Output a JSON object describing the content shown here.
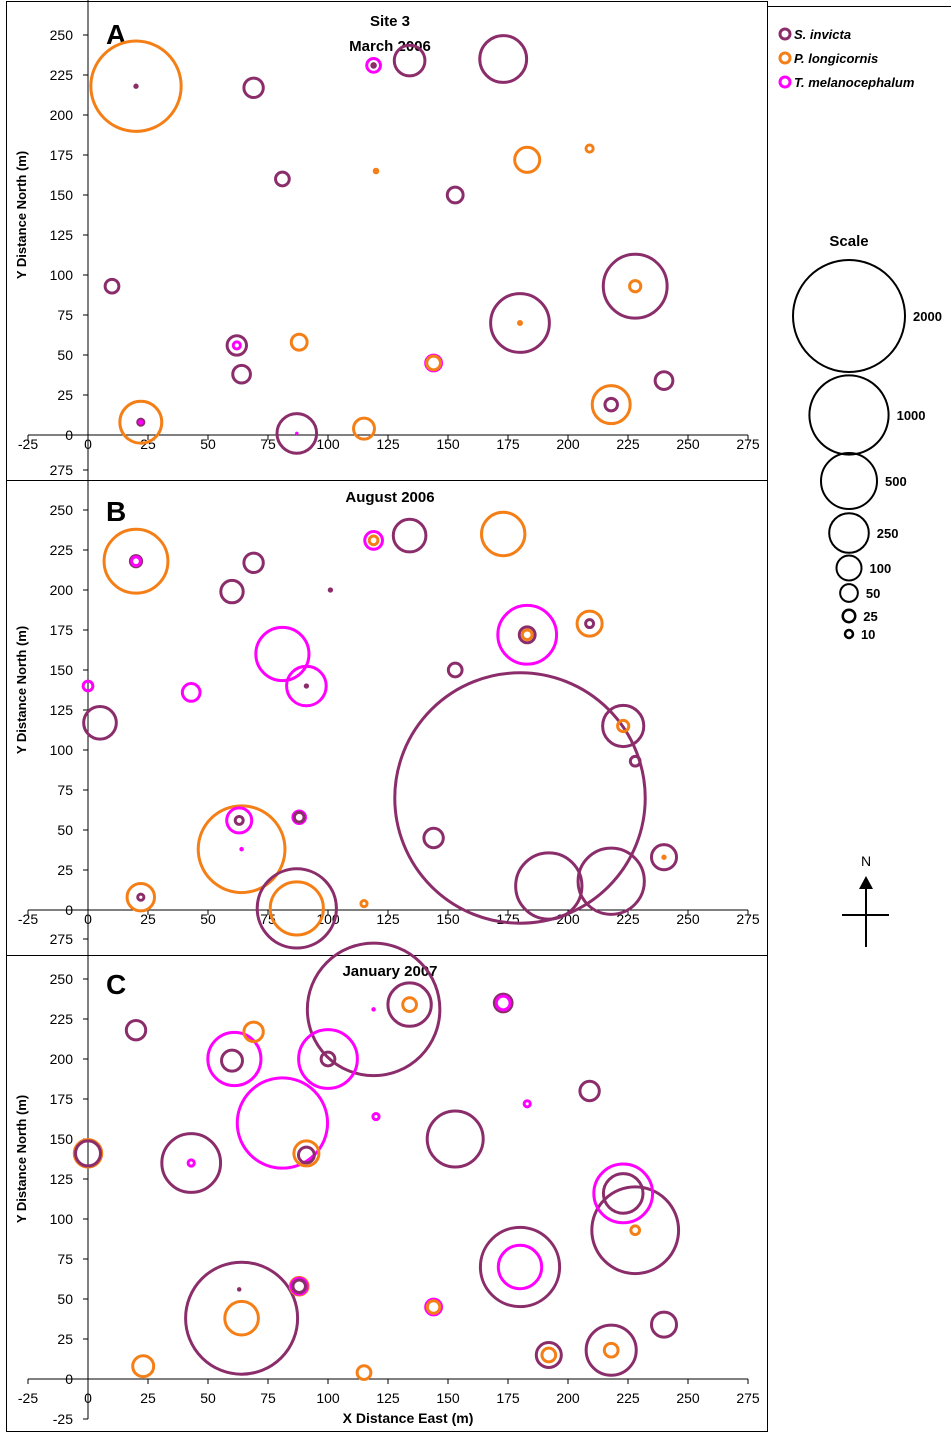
{
  "legend": {
    "items": [
      {
        "name": "S. invicta",
        "color": "#8B2D6B"
      },
      {
        "name": "P. longicornis",
        "color": "#F57F17"
      },
      {
        "name": "T. melanocephalum",
        "color": "#FF00FF"
      }
    ]
  },
  "scale_legend": {
    "title": "Scale",
    "items": [
      {
        "value": 2000,
        "label": "2000"
      },
      {
        "value": 1000,
        "label": "1000"
      },
      {
        "value": 500,
        "label": "500"
      },
      {
        "value": 250,
        "label": "250"
      },
      {
        "value": 100,
        "label": "100"
      },
      {
        "value": 50,
        "label": "50"
      },
      {
        "value": 25,
        "label": "25"
      },
      {
        "value": 10,
        "label": "10"
      }
    ]
  },
  "north_arrow": {
    "label": "N"
  },
  "chart_data": [
    {
      "type": "scatter",
      "panel_letter": "A",
      "title": "Site 3\nMarch 2006",
      "xlabel": "",
      "ylabel": "Y Distance North (m)",
      "xlim": [
        -25,
        275
      ],
      "ylim": [
        -25,
        275
      ],
      "xticks": [
        "-25",
        "0",
        "25",
        "50",
        "75",
        "100",
        "125",
        "150",
        "175",
        "200",
        "225",
        "250",
        "275"
      ],
      "yticks": [
        "275",
        "250",
        "225",
        "200",
        "175",
        "150",
        "125",
        "100",
        "75",
        "50",
        "25",
        "0"
      ],
      "series": [
        {
          "name": "S. invicta",
          "color": "#8B2D6B",
          "points": [
            {
              "x": 10,
              "y": 93,
              "value": 30
            },
            {
              "x": 20,
              "y": 218,
              "value": 3
            },
            {
              "x": 22,
              "y": 8,
              "value": 6
            },
            {
              "x": 62,
              "y": 56,
              "value": 60
            },
            {
              "x": 64,
              "y": 38,
              "value": 50
            },
            {
              "x": 69,
              "y": 217,
              "value": 60
            },
            {
              "x": 81,
              "y": 160,
              "value": 30
            },
            {
              "x": 87,
              "y": 1,
              "value": 250
            },
            {
              "x": 119,
              "y": 231,
              "value": 5
            },
            {
              "x": 134,
              "y": 234,
              "value": 150
            },
            {
              "x": 153,
              "y": 150,
              "value": 40
            },
            {
              "x": 173,
              "y": 235,
              "value": 350
            },
            {
              "x": 180,
              "y": 70,
              "value": 550
            },
            {
              "x": 218,
              "y": 19,
              "value": 25
            },
            {
              "x": 228,
              "y": 93,
              "value": 650
            },
            {
              "x": 240,
              "y": 34,
              "value": 50
            }
          ]
        },
        {
          "name": "P. longicornis",
          "color": "#F57F17",
          "points": [
            {
              "x": 20,
              "y": 218,
              "value": 1300
            },
            {
              "x": 22,
              "y": 8,
              "value": 280
            },
            {
              "x": 88,
              "y": 58,
              "value": 40
            },
            {
              "x": 115,
              "y": 4,
              "value": 70
            },
            {
              "x": 120,
              "y": 165,
              "value": 5
            },
            {
              "x": 144,
              "y": 45,
              "value": 30
            },
            {
              "x": 183,
              "y": 172,
              "value": 100
            },
            {
              "x": 209,
              "y": 179,
              "value": 8
            },
            {
              "x": 218,
              "y": 19,
              "value": 230
            },
            {
              "x": 228,
              "y": 93,
              "value": 20
            },
            {
              "x": 180,
              "y": 70,
              "value": 4
            }
          ]
        },
        {
          "name": "T. melanocephalum",
          "color": "#FF00FF",
          "points": [
            {
              "x": 22,
              "y": 8,
              "value": 3
            },
            {
              "x": 62,
              "y": 56,
              "value": 8
            },
            {
              "x": 87,
              "y": 1,
              "value": 1
            },
            {
              "x": 119,
              "y": 231,
              "value": 30
            },
            {
              "x": 144,
              "y": 45,
              "value": 40
            }
          ]
        }
      ]
    },
    {
      "type": "scatter",
      "panel_letter": "B",
      "title": "August 2006",
      "xlabel": "",
      "ylabel": "Y Distance North (m)",
      "xlim": [
        -25,
        275
      ],
      "ylim": [
        -25,
        275
      ],
      "xticks": [
        "-25",
        "0",
        "25",
        "50",
        "75",
        "100",
        "125",
        "150",
        "175",
        "200",
        "225",
        "250",
        "275"
      ],
      "yticks": [
        "275",
        "250",
        "225",
        "200",
        "175",
        "150",
        "125",
        "100",
        "75",
        "50",
        "25",
        "0"
      ],
      "series": [
        {
          "name": "S. invicta",
          "color": "#8B2D6B",
          "points": [
            {
              "x": 5,
              "y": 117,
              "value": 170
            },
            {
              "x": 20,
              "y": 218,
              "value": 20
            },
            {
              "x": 22,
              "y": 8,
              "value": 6
            },
            {
              "x": 60,
              "y": 199,
              "value": 80
            },
            {
              "x": 63,
              "y": 56,
              "value": 10
            },
            {
              "x": 69,
              "y": 217,
              "value": 60
            },
            {
              "x": 88,
              "y": 58,
              "value": 15
            },
            {
              "x": 87,
              "y": 1,
              "value": 1000
            },
            {
              "x": 91,
              "y": 140,
              "value": 3
            },
            {
              "x": 101,
              "y": 200,
              "value": 3
            },
            {
              "x": 134,
              "y": 234,
              "value": 170
            },
            {
              "x": 144,
              "y": 45,
              "value": 60
            },
            {
              "x": 153,
              "y": 150,
              "value": 30
            },
            {
              "x": 180,
              "y": 70,
              "value": 10000
            },
            {
              "x": 183,
              "y": 172,
              "value": 40
            },
            {
              "x": 192,
              "y": 15,
              "value": 700
            },
            {
              "x": 209,
              "y": 179,
              "value": 10
            },
            {
              "x": 218,
              "y": 18,
              "value": 700
            },
            {
              "x": 223,
              "y": 115,
              "value": 270
            },
            {
              "x": 228,
              "y": 93,
              "value": 15
            },
            {
              "x": 240,
              "y": 33,
              "value": 100
            }
          ]
        },
        {
          "name": "P. longicornis",
          "color": "#F57F17",
          "points": [
            {
              "x": 20,
              "y": 218,
              "value": 650
            },
            {
              "x": 22,
              "y": 8,
              "value": 120
            },
            {
              "x": 64,
              "y": 38,
              "value": 1200
            },
            {
              "x": 87,
              "y": 1,
              "value": 450
            },
            {
              "x": 115,
              "y": 4,
              "value": 6
            },
            {
              "x": 119,
              "y": 231,
              "value": 12
            },
            {
              "x": 173,
              "y": 235,
              "value": 300
            },
            {
              "x": 183,
              "y": 172,
              "value": 15
            },
            {
              "x": 209,
              "y": 179,
              "value": 100
            },
            {
              "x": 223,
              "y": 115,
              "value": 20
            },
            {
              "x": 240,
              "y": 33,
              "value": 3
            }
          ]
        },
        {
          "name": "T. melanocephalum",
          "color": "#FF00FF",
          "points": [
            {
              "x": 0,
              "y": 140,
              "value": 15
            },
            {
              "x": 20,
              "y": 218,
              "value": 12
            },
            {
              "x": 43,
              "y": 136,
              "value": 50
            },
            {
              "x": 63,
              "y": 56,
              "value": 100
            },
            {
              "x": 64,
              "y": 38,
              "value": 2
            },
            {
              "x": 81,
              "y": 160,
              "value": 450
            },
            {
              "x": 88,
              "y": 58,
              "value": 25
            },
            {
              "x": 91,
              "y": 140,
              "value": 250
            },
            {
              "x": 119,
              "y": 231,
              "value": 50
            },
            {
              "x": 183,
              "y": 172,
              "value": 550
            }
          ]
        }
      ]
    },
    {
      "type": "scatter",
      "panel_letter": "C",
      "title": "January 2007",
      "xlabel": "X Distance East (m)",
      "ylabel": "Y Distance North (m)",
      "xlim": [
        -25,
        275
      ],
      "ylim": [
        -25,
        275
      ],
      "xticks": [
        "-25",
        "0",
        "25",
        "50",
        "75",
        "100",
        "125",
        "150",
        "175",
        "200",
        "225",
        "250",
        "275"
      ],
      "yticks": [
        "275",
        "250",
        "225",
        "200",
        "175",
        "150",
        "125",
        "100",
        "75",
        "50",
        "25",
        "0",
        "-25"
      ],
      "series": [
        {
          "name": "S. invicta",
          "color": "#8B2D6B",
          "points": [
            {
              "x": 0,
              "y": 141,
              "value": 100
            },
            {
              "x": 20,
              "y": 218,
              "value": 60
            },
            {
              "x": 43,
              "y": 135,
              "value": 550
            },
            {
              "x": 60,
              "y": 199,
              "value": 70
            },
            {
              "x": 63,
              "y": 56,
              "value": 2
            },
            {
              "x": 64,
              "y": 38,
              "value": 2000
            },
            {
              "x": 88,
              "y": 58,
              "value": 25
            },
            {
              "x": 91,
              "y": 140,
              "value": 40
            },
            {
              "x": 100,
              "y": 200,
              "value": 30
            },
            {
              "x": 119,
              "y": 231,
              "value": 2800
            },
            {
              "x": 134,
              "y": 234,
              "value": 300
            },
            {
              "x": 153,
              "y": 150,
              "value": 500
            },
            {
              "x": 173,
              "y": 235,
              "value": 50
            },
            {
              "x": 180,
              "y": 70,
              "value": 1000
            },
            {
              "x": 192,
              "y": 15,
              "value": 100
            },
            {
              "x": 209,
              "y": 180,
              "value": 60
            },
            {
              "x": 218,
              "y": 18,
              "value": 400
            },
            {
              "x": 223,
              "y": 116,
              "value": 250
            },
            {
              "x": 228,
              "y": 93,
              "value": 1200
            },
            {
              "x": 240,
              "y": 34,
              "value": 100
            }
          ]
        },
        {
          "name": "P. longicornis",
          "color": "#F57F17",
          "points": [
            {
              "x": 0,
              "y": 141,
              "value": 120
            },
            {
              "x": 23,
              "y": 8,
              "value": 70
            },
            {
              "x": 64,
              "y": 38,
              "value": 180
            },
            {
              "x": 69,
              "y": 217,
              "value": 60
            },
            {
              "x": 88,
              "y": 58,
              "value": 50
            },
            {
              "x": 91,
              "y": 141,
              "value": 100
            },
            {
              "x": 115,
              "y": 4,
              "value": 30
            },
            {
              "x": 134,
              "y": 234,
              "value": 30
            },
            {
              "x": 144,
              "y": 45,
              "value": 25
            },
            {
              "x": 192,
              "y": 15,
              "value": 30
            },
            {
              "x": 218,
              "y": 18,
              "value": 30
            },
            {
              "x": 228,
              "y": 93,
              "value": 12
            }
          ]
        },
        {
          "name": "T. melanocephalum",
          "color": "#FF00FF",
          "points": [
            {
              "x": 43,
              "y": 135,
              "value": 6
            },
            {
              "x": 61,
              "y": 200,
              "value": 450
            },
            {
              "x": 81,
              "y": 160,
              "value": 1300
            },
            {
              "x": 88,
              "y": 58,
              "value": 40
            },
            {
              "x": 100,
              "y": 200,
              "value": 550
            },
            {
              "x": 119,
              "y": 231,
              "value": 2
            },
            {
              "x": 120,
              "y": 164,
              "value": 6
            },
            {
              "x": 144,
              "y": 45,
              "value": 40
            },
            {
              "x": 173,
              "y": 235,
              "value": 30
            },
            {
              "x": 183,
              "y": 172,
              "value": 6
            },
            {
              "x": 180,
              "y": 70,
              "value": 300
            },
            {
              "x": 223,
              "y": 116,
              "value": 550
            }
          ]
        }
      ]
    }
  ]
}
